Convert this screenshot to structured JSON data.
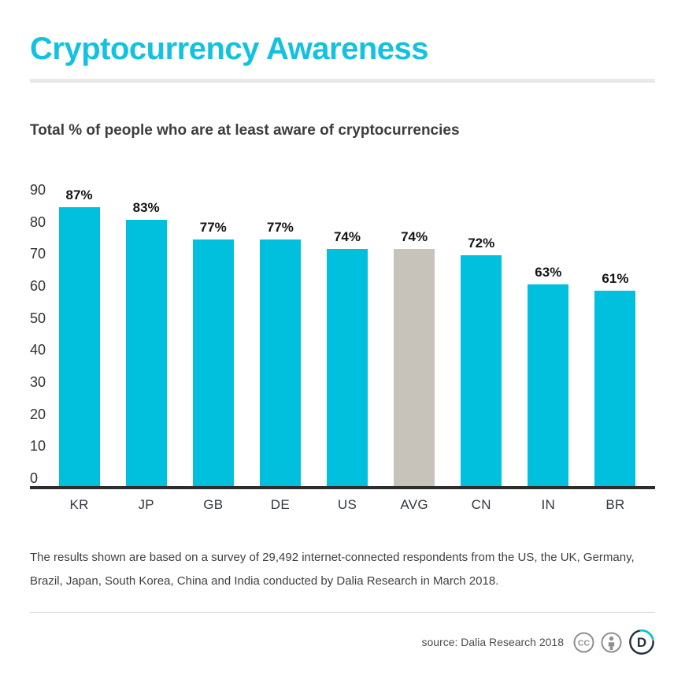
{
  "header": {
    "title": "Cryptocurrency Awareness",
    "subtitle": "Total % of people who are at least aware of cryptocurrencies"
  },
  "chart_data": {
    "type": "bar",
    "title": "Cryptocurrency Awareness",
    "subtitle": "Total % of people who are at least aware of cryptocurrencies",
    "categories": [
      "KR",
      "JP",
      "GB",
      "DE",
      "US",
      "AVG",
      "CN",
      "IN",
      "BR"
    ],
    "values": [
      87,
      83,
      77,
      77,
      74,
      74,
      72,
      63,
      61
    ],
    "value_labels": [
      "87%",
      "83%",
      "77%",
      "77%",
      "74%",
      "74%",
      "72%",
      "63%",
      "61%"
    ],
    "highlight_category": "AVG",
    "y_ticks": [
      90,
      80,
      70,
      60,
      50,
      40,
      30,
      20,
      10,
      0
    ],
    "ylim": [
      0,
      90
    ],
    "xlabel": "",
    "ylabel": "",
    "grid": false,
    "legend": "none",
    "bar_color": "#00c0de",
    "highlight_bar_color": "#c7c2ba"
  },
  "footnote": {
    "text": "The results shown are based on a survey of 29,492 internet-connected respondents from the US, the UK, Germany, Brazil, Japan, South Korea, China and India conducted by Dalia Research in March 2018."
  },
  "footer": {
    "source_label": "source: Dalia Research 2018",
    "icons": [
      "cc-license-icon",
      "attribution-icon",
      "dalia-logo"
    ]
  },
  "colors": {
    "accent": "#12c2e0",
    "bar": "#00c0de",
    "highlight_bar": "#c7c2ba",
    "axis": "#2d2d2d",
    "divider": "#e9e9e9",
    "icon_gray": "#8f8f8f",
    "logo_navy": "#24303d"
  }
}
